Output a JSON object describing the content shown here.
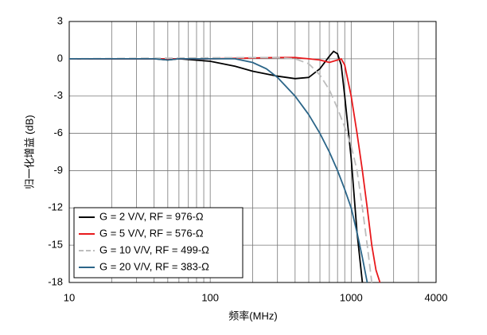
{
  "chart_data": {
    "type": "line",
    "xlabel": "频率(MHz)",
    "ylabel": "归一化增益 (dB)",
    "xscale": "log",
    "xlim": [
      10,
      4000
    ],
    "xticks": [
      10,
      100,
      1000,
      4000
    ],
    "xminor": [
      20,
      30,
      40,
      50,
      60,
      70,
      80,
      90,
      200,
      300,
      400,
      500,
      600,
      700,
      800,
      900,
      2000,
      3000
    ],
    "ylim": [
      -18,
      3
    ],
    "yticks": [
      -18,
      -15,
      -12,
      -9,
      -6,
      -3,
      0,
      3
    ],
    "grid": true,
    "legend": "lower left",
    "series": [
      {
        "name": "G = 2 V/V, RF = 976-Ω",
        "color": "#000000",
        "dash": false,
        "x": [
          10,
          40,
          50,
          60,
          100,
          150,
          200,
          300,
          400,
          500,
          600,
          700,
          750,
          800,
          850,
          900,
          1000,
          1100,
          1200
        ],
        "values": [
          0,
          0,
          -0.1,
          0,
          -0.2,
          -0.6,
          -1.0,
          -1.4,
          -1.6,
          -1.5,
          -0.8,
          0.2,
          0.6,
          0.4,
          -0.5,
          -3,
          -8,
          -14,
          -18
        ]
      },
      {
        "name": "G = 5 V/V, RF = 576-Ω",
        "color": "#e8191c",
        "dash": false,
        "x": [
          10,
          100,
          300,
          400,
          500,
          600,
          700,
          800,
          850,
          900,
          1000,
          1100,
          1200,
          1300,
          1400,
          1500,
          1600
        ],
        "values": [
          0,
          0,
          0.1,
          0.1,
          0,
          -0.1,
          -0.3,
          -0.1,
          0,
          -0.5,
          -3,
          -6,
          -9,
          -12,
          -15,
          -17,
          -18
        ]
      },
      {
        "name": "G = 10 V/V, RF = 499-Ω",
        "color": "#bdbdbd",
        "dash": true,
        "x": [
          10,
          200,
          300,
          400,
          500,
          600,
          700,
          800,
          900,
          1000,
          1100,
          1200,
          1300,
          1400
        ],
        "values": [
          0,
          0.1,
          0.1,
          0,
          -0.4,
          -1.3,
          -2.5,
          -4,
          -5.5,
          -7,
          -9,
          -12,
          -15,
          -18
        ]
      },
      {
        "name": "G = 20 V/V, RF = 383-Ω",
        "color": "#2b6588",
        "dash": false,
        "x": [
          10,
          40,
          50,
          60,
          100,
          150,
          200,
          250,
          300,
          400,
          500,
          600,
          700,
          800,
          900,
          1000,
          1100,
          1200,
          1300
        ],
        "values": [
          0,
          0,
          -0.1,
          0,
          0,
          0,
          -0.3,
          -0.8,
          -1.5,
          -3,
          -4.5,
          -6,
          -7.5,
          -9,
          -10.5,
          -12,
          -14,
          -16,
          -18
        ]
      }
    ]
  }
}
